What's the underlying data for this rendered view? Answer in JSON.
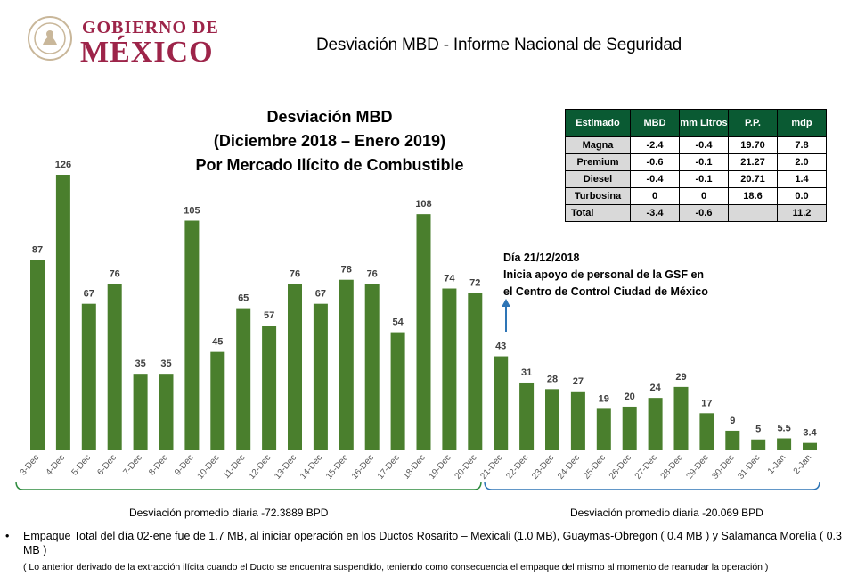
{
  "header": {
    "logo_line1": "GOBIERNO DE",
    "logo_line2": "MÉXICO",
    "title": "Desviación MBD - Informe Nacional de Seguridad"
  },
  "chart_data": {
    "type": "bar",
    "title": [
      "Desviación MBD",
      "(Diciembre 2018  – Enero 2019)",
      "Por Mercado Ilícito de Combustible"
    ],
    "categories": [
      "3-Dec",
      "4-Dec",
      "5-Dec",
      "6-Dec",
      "7-Dec",
      "8-Dec",
      "9-Dec",
      "10-Dec",
      "11-Dec",
      "12-Dec",
      "13-Dec",
      "14-Dec",
      "15-Dec",
      "16-Dec",
      "17-Dec",
      "18-Dec",
      "19-Dec",
      "20-Dec",
      "21-Dec",
      "22-Dec",
      "23-Dec",
      "24-Dec",
      "25-Dec",
      "26-Dec",
      "27-Dec",
      "28-Dec",
      "29-Dec",
      "30-Dec",
      "31-Dec",
      "1-Jan",
      "2-Jan"
    ],
    "values": [
      87,
      126,
      67,
      76,
      35,
      35,
      105,
      45,
      65,
      57,
      76,
      67,
      78,
      76,
      54,
      108,
      74,
      72,
      43,
      31,
      28,
      27,
      19,
      20,
      24,
      29,
      17,
      9,
      5,
      5.5,
      3.4
    ],
    "labels": [
      "87",
      "126",
      "67",
      "76",
      "35",
      "35",
      "105",
      "45",
      "65",
      "57",
      "76",
      "67",
      "78",
      "76",
      "54",
      "108",
      "74",
      "72",
      "43",
      "31",
      "28",
      "27",
      "19",
      "20",
      "24",
      "29",
      "17",
      "9",
      "5",
      "5.5",
      "3.4"
    ],
    "bar_color": "#4a7f2d",
    "ylim": [
      0,
      130
    ],
    "grid": false,
    "legend": "none"
  },
  "estimate_table": {
    "headers": [
      "Estimado",
      "MBD",
      "mm Litros",
      "P.P.",
      "mdp"
    ],
    "rows": [
      [
        "Magna",
        "-2.4",
        "-0.4",
        "19.70",
        "7.8"
      ],
      [
        "Premium",
        "-0.6",
        "-0.1",
        "21.27",
        "2.0"
      ],
      [
        "Diesel",
        "-0.4",
        "-0.1",
        "20.71",
        "1.4"
      ],
      [
        "Turbosina",
        "0",
        "0",
        "18.6",
        "0.0"
      ],
      [
        "Total",
        "-3.4",
        "-0.6",
        "",
        "11.2"
      ]
    ]
  },
  "annotation": {
    "line1": "Día 21/12/2018",
    "line2": "Inicia apoyo de personal de la GSF en",
    "line3": "el Centro de Control Ciudad de México"
  },
  "averages": {
    "left": "Desviación promedio diaria  -72.3889 BPD",
    "right": "Desviación promedio diaria  -20.069 BPD",
    "left_color": "#2e8b3e",
    "right_color": "#2e75b6"
  },
  "footer": {
    "bullet": "•",
    "line1": "Empaque Total del día 02-ene fue de  1.7 MB, al iniciar operación en los Ductos Rosarito – Mexicali (1.0 MB), Guaymas-Obregon ( 0.4 MB ) y Salamanca  Morelia ( 0.3 MB )",
    "line2": "( Lo anterior derivado de la extracción ilícita cuando el Ducto se encuentra suspendido, teniendo como consecuencia el empaque del mismo al momento de reanudar la operación )"
  }
}
